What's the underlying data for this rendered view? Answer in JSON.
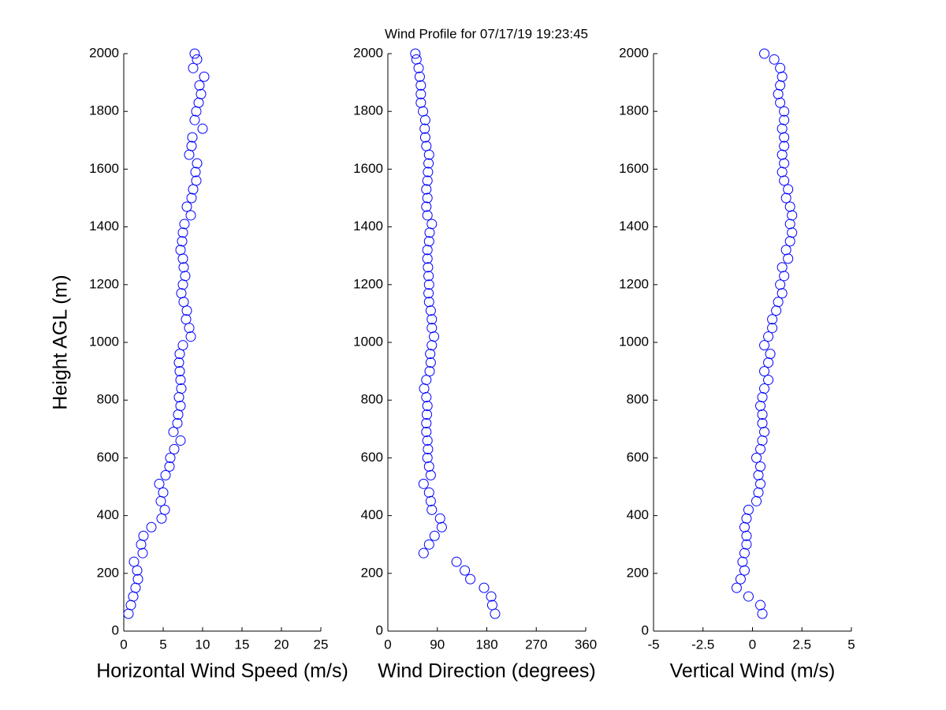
{
  "chart_data": [
    {
      "type": "scatter",
      "title": "Wind Profile for  07/17/19 19:23:45",
      "xlabel": "Horizontal Wind Speed (m/s)",
      "ylabel": "Height AGL (m)",
      "color": "#0000ff",
      "xlim": [
        0,
        25
      ],
      "xticks": [
        0,
        5,
        10,
        15,
        20,
        25
      ],
      "ylim": [
        0,
        2000
      ],
      "yticks": [
        0,
        200,
        400,
        600,
        800,
        1000,
        1200,
        1400,
        1600,
        1800,
        2000
      ],
      "x": [
        0.6,
        0.9,
        1.2,
        1.5,
        1.8,
        1.7,
        1.3,
        2.4,
        2.2,
        2.5,
        3.5,
        4.8,
        5.2,
        4.7,
        5.0,
        4.5,
        5.3,
        5.8,
        5.9,
        6.4,
        7.2,
        6.3,
        6.8,
        6.9,
        7.2,
        7.0,
        7.3,
        7.2,
        7.1,
        7.0,
        7.1,
        7.5,
        8.5,
        8.3,
        7.9,
        8.0,
        7.6,
        7.3,
        7.5,
        7.8,
        7.6,
        7.5,
        7.2,
        7.4,
        7.5,
        7.7,
        8.5,
        8.0,
        8.6,
        8.8,
        9.2,
        9.1,
        9.3,
        8.3,
        8.6,
        8.7,
        10.0,
        9.0,
        9.2,
        9.5,
        9.8,
        9.6,
        10.2,
        8.8,
        9.3,
        9.0
      ],
      "y": [
        60,
        90,
        120,
        150,
        180,
        210,
        240,
        270,
        300,
        330,
        360,
        390,
        420,
        450,
        480,
        510,
        540,
        570,
        600,
        630,
        660,
        690,
        720,
        750,
        780,
        810,
        840,
        870,
        900,
        930,
        960,
        990,
        1020,
        1050,
        1080,
        1110,
        1140,
        1170,
        1200,
        1230,
        1260,
        1290,
        1320,
        1350,
        1380,
        1410,
        1440,
        1470,
        1500,
        1530,
        1560,
        1590,
        1620,
        1650,
        1680,
        1710,
        1740,
        1770,
        1800,
        1830,
        1860,
        1890,
        1920,
        1950,
        1980,
        2000
      ]
    },
    {
      "type": "scatter",
      "xlabel": "Wind Direction (degrees)",
      "color": "#0000ff",
      "xlim": [
        0,
        360
      ],
      "xticks": [
        0,
        90,
        180,
        270,
        360
      ],
      "ylim": [
        0,
        2000
      ],
      "yticks": [
        0,
        200,
        400,
        600,
        800,
        1000,
        1200,
        1400,
        1600,
        1800,
        2000
      ],
      "x": [
        195,
        190,
        188,
        175,
        150,
        140,
        125,
        65,
        75,
        85,
        98,
        95,
        80,
        78,
        75,
        65,
        78,
        75,
        72,
        73,
        72,
        70,
        70,
        71,
        72,
        70,
        66,
        70,
        76,
        78,
        77,
        80,
        84,
        80,
        80,
        78,
        75,
        74,
        75,
        74,
        73,
        72,
        72,
        75,
        76,
        80,
        72,
        70,
        72,
        70,
        72,
        73,
        74,
        75,
        70,
        68,
        67,
        68,
        64,
        60,
        60,
        60,
        58,
        56,
        52,
        50
      ],
      "y": [
        60,
        90,
        120,
        150,
        180,
        210,
        240,
        270,
        300,
        330,
        360,
        390,
        420,
        450,
        480,
        510,
        540,
        570,
        600,
        630,
        660,
        690,
        720,
        750,
        780,
        810,
        840,
        870,
        900,
        930,
        960,
        990,
        1020,
        1050,
        1080,
        1110,
        1140,
        1170,
        1200,
        1230,
        1260,
        1290,
        1320,
        1350,
        1380,
        1410,
        1440,
        1470,
        1500,
        1530,
        1560,
        1590,
        1620,
        1650,
        1680,
        1710,
        1740,
        1770,
        1800,
        1830,
        1860,
        1890,
        1920,
        1950,
        1980,
        2000
      ]
    },
    {
      "type": "scatter",
      "xlabel": "Vertical Wind (m/s)",
      "color": "#0000ff",
      "xlim": [
        -5,
        5
      ],
      "xticks": [
        -5,
        -2.5,
        0,
        2.5,
        5
      ],
      "ylim": [
        0,
        2000
      ],
      "yticks": [
        0,
        200,
        400,
        600,
        800,
        1000,
        1200,
        1400,
        1600,
        1800,
        2000
      ],
      "x": [
        0.5,
        0.4,
        -0.2,
        -0.8,
        -0.6,
        -0.4,
        -0.5,
        -0.4,
        -0.3,
        -0.3,
        -0.4,
        -0.3,
        -0.2,
        0.2,
        0.3,
        0.4,
        0.3,
        0.4,
        0.2,
        0.4,
        0.5,
        0.6,
        0.5,
        0.5,
        0.4,
        0.5,
        0.6,
        0.8,
        0.6,
        0.8,
        0.9,
        0.6,
        0.8,
        1.0,
        1.0,
        1.2,
        1.3,
        1.5,
        1.4,
        1.6,
        1.5,
        1.8,
        1.7,
        1.9,
        2.0,
        1.9,
        2.0,
        1.9,
        1.7,
        1.8,
        1.6,
        1.5,
        1.6,
        1.5,
        1.6,
        1.6,
        1.5,
        1.6,
        1.6,
        1.4,
        1.3,
        1.4,
        1.5,
        1.4,
        1.1,
        0.6
      ],
      "y": [
        60,
        90,
        120,
        150,
        180,
        210,
        240,
        270,
        300,
        330,
        360,
        390,
        420,
        450,
        480,
        510,
        540,
        570,
        600,
        630,
        660,
        690,
        720,
        750,
        780,
        810,
        840,
        870,
        900,
        930,
        960,
        990,
        1020,
        1050,
        1080,
        1110,
        1140,
        1170,
        1200,
        1230,
        1260,
        1290,
        1320,
        1350,
        1380,
        1410,
        1440,
        1470,
        1500,
        1530,
        1560,
        1590,
        1620,
        1650,
        1680,
        1710,
        1740,
        1770,
        1800,
        1830,
        1860,
        1890,
        1920,
        1950,
        1980,
        2000
      ]
    }
  ]
}
